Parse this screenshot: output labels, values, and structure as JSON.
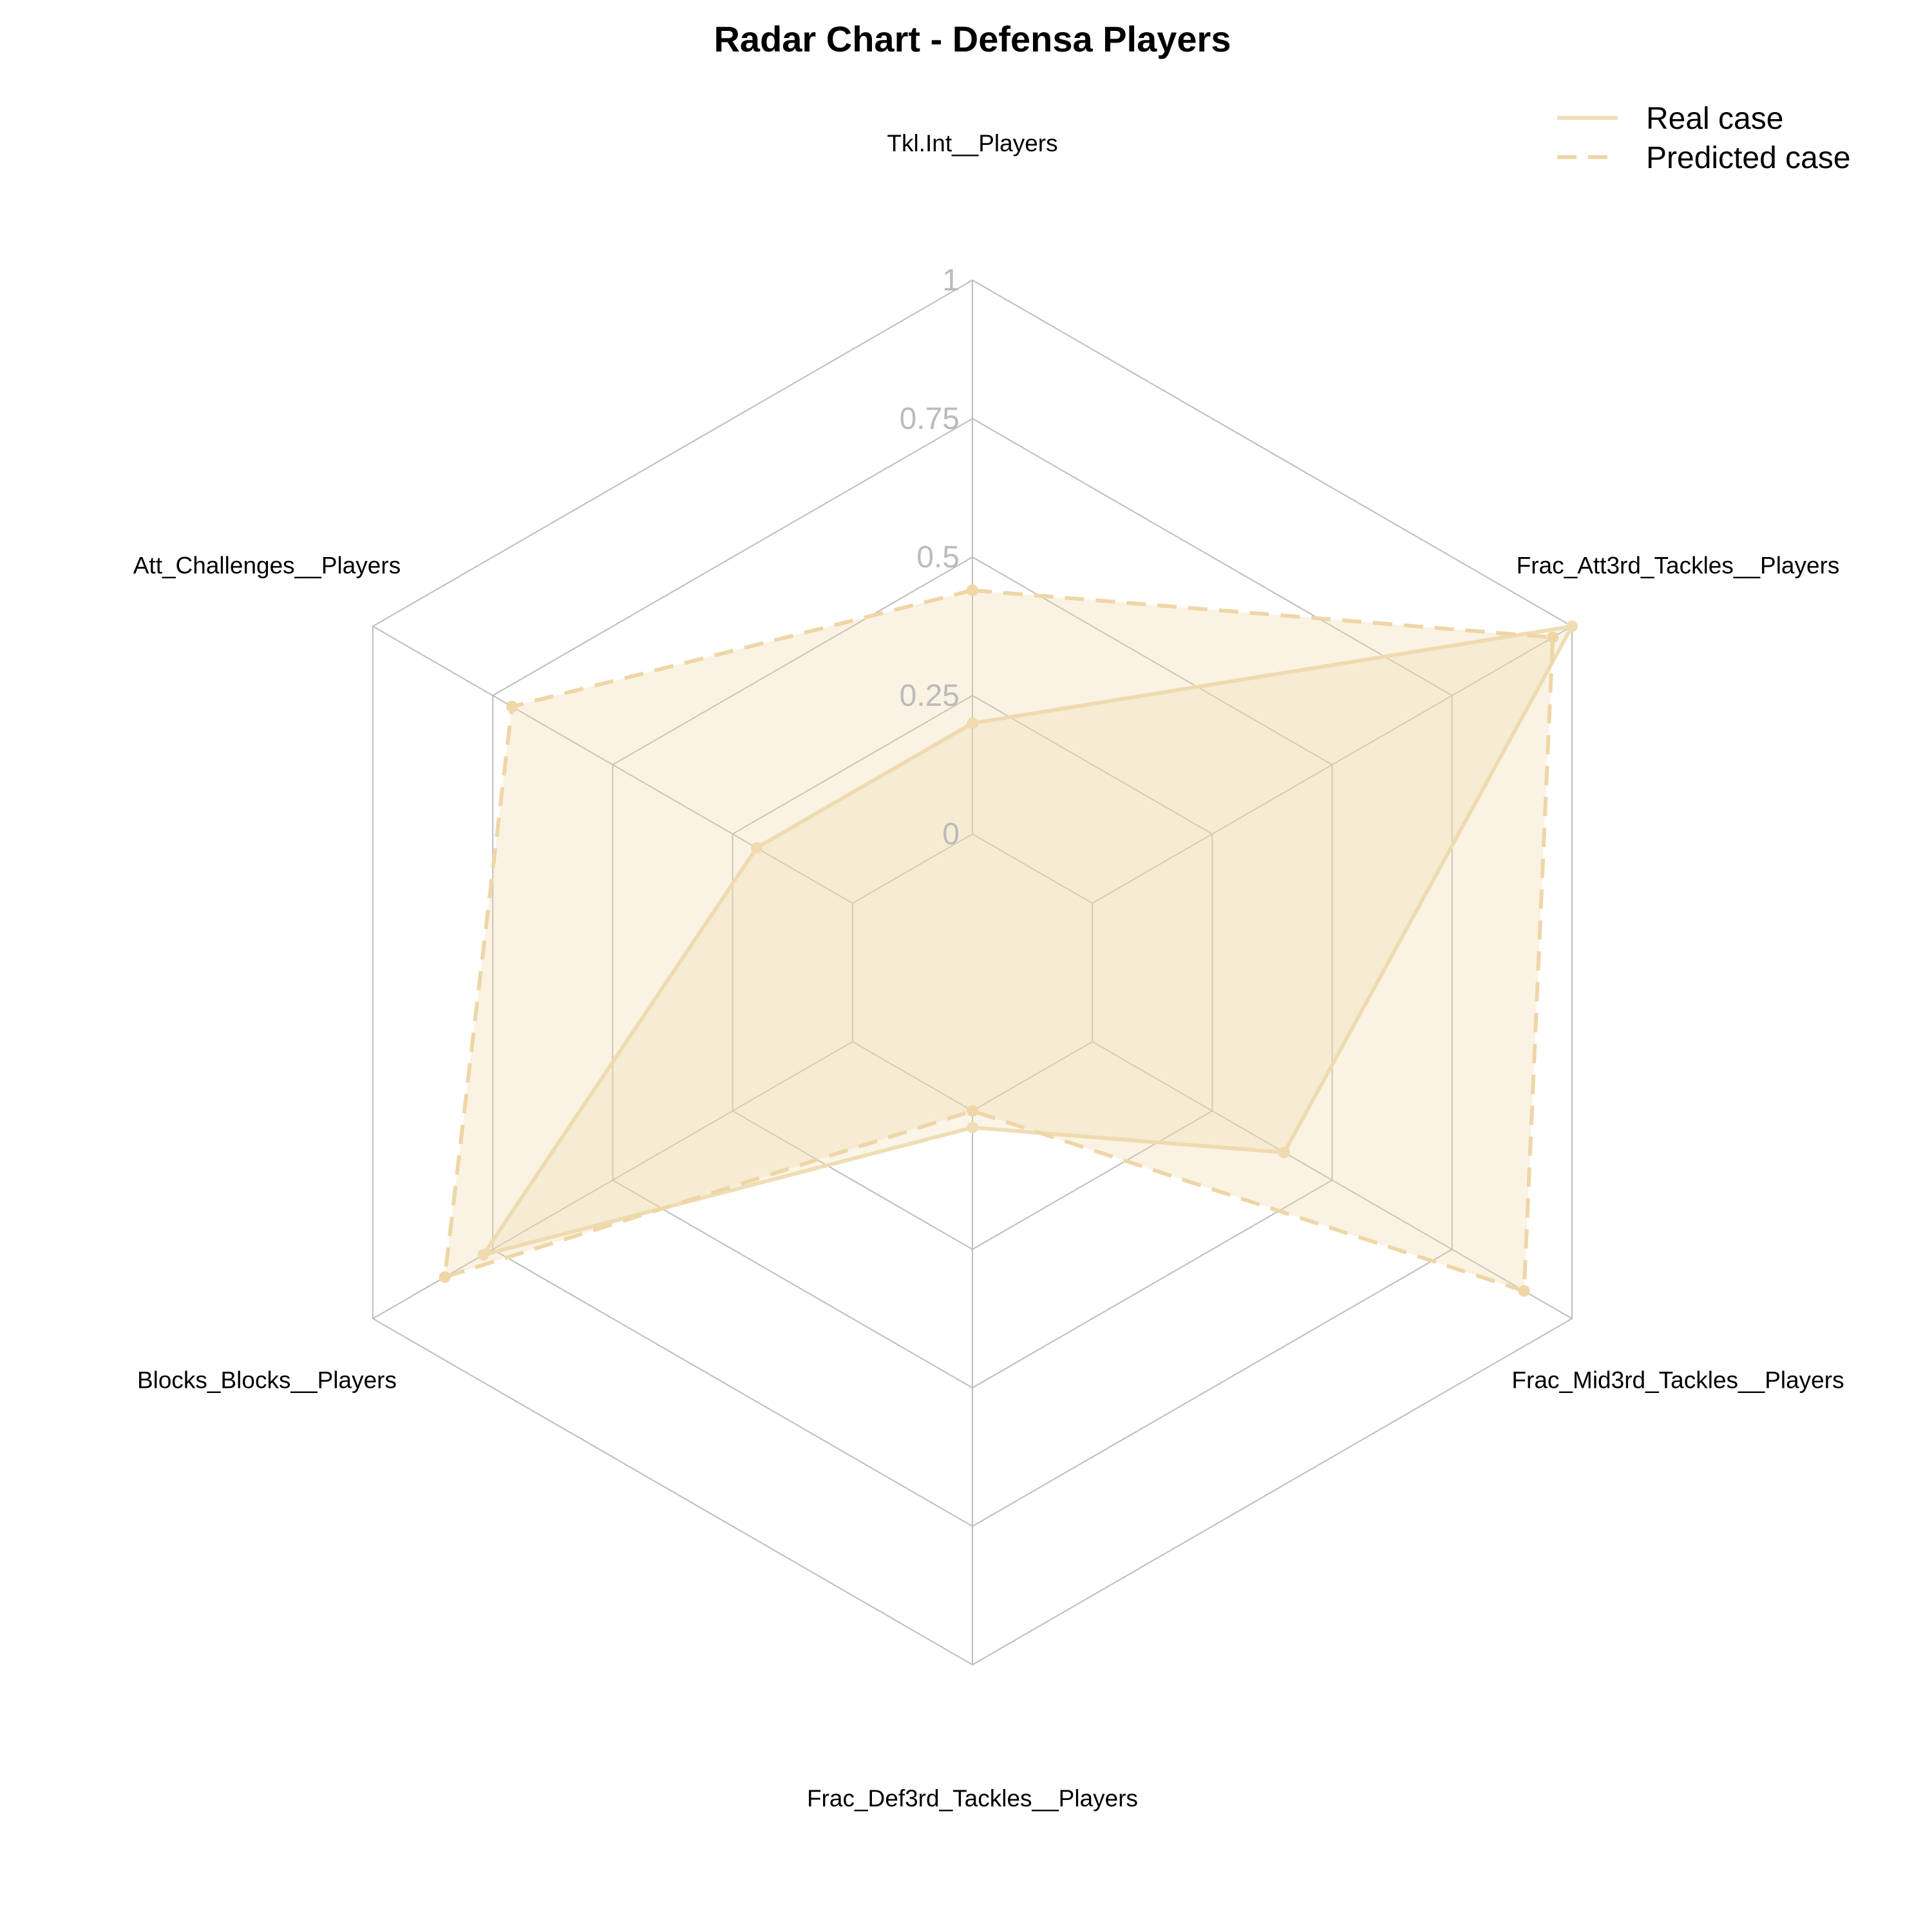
{
  "chart_data": {
    "type": "radar",
    "title": "Radar Chart - Defensa Players",
    "axes": [
      "Tkl.Int__Players",
      "Frac_Att3rd_Tackles__Players",
      "Frac_Mid3rd_Tackles__Players",
      "Frac_Def3rd_Tackles__Players",
      "Blocks_Blocks__Players",
      "Att_Challenges__Players"
    ],
    "rlim": [
      0,
      1
    ],
    "ticks": [
      0,
      0.25,
      0.5,
      0.75,
      1
    ],
    "tick_labels": [
      "0",
      "0.25",
      "0.5",
      "0.75",
      "1"
    ],
    "grid": true,
    "legend": {
      "position": "top-right"
    },
    "series": [
      {
        "name": "Real case",
        "values": [
          0.2,
          1.0,
          0.4,
          0.03,
          0.77,
          0.2
        ],
        "line_style": "solid",
        "color": "#f0ddb4",
        "fill_opacity": 0.3
      },
      {
        "name": "Predicted case",
        "values": [
          0.44,
          0.96,
          0.9,
          0.0,
          0.85,
          0.71
        ],
        "line_style": "dashed",
        "color": "#efd6a6",
        "fill_opacity": 0.3
      }
    ]
  }
}
